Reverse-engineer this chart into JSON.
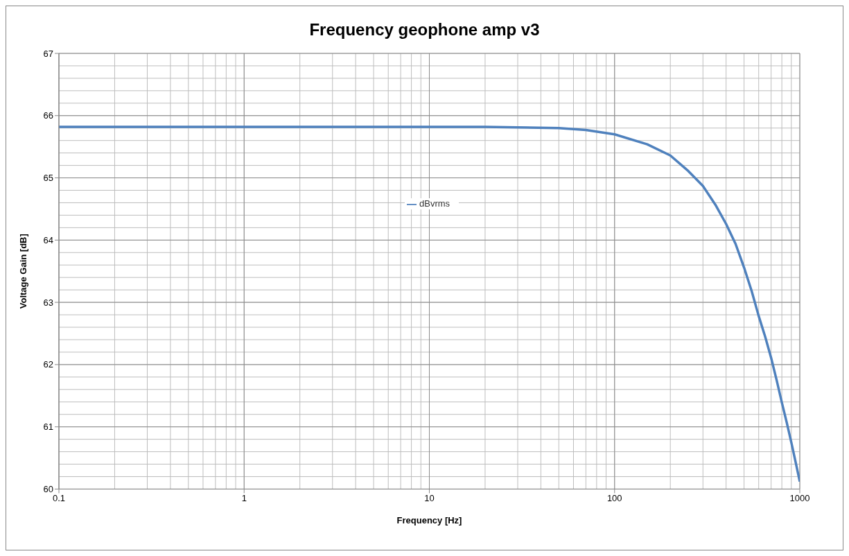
{
  "chart_data": {
    "type": "line",
    "title": "Frequency geophone amp v3",
    "xlabel": "Frequency [Hz]",
    "ylabel": "Voltage Gain [dB]",
    "x": [
      0.1,
      0.2,
      0.5,
      1,
      2,
      5,
      10,
      20,
      30,
      50,
      70,
      100,
      150,
      200,
      250,
      300,
      350,
      400,
      450,
      500,
      550,
      600,
      650,
      700,
      750,
      800,
      850,
      900,
      950,
      1000
    ],
    "series": [
      {
        "name": "dBvrms",
        "color": "#4f81bd",
        "values": [
          65.82,
          65.82,
          65.82,
          65.82,
          65.82,
          65.82,
          65.82,
          65.82,
          65.81,
          65.8,
          65.77,
          65.7,
          65.54,
          65.36,
          65.11,
          64.87,
          64.57,
          64.26,
          63.94,
          63.56,
          63.18,
          62.78,
          62.45,
          62.11,
          61.75,
          61.39,
          61.07,
          60.75,
          60.43,
          60.12
        ]
      }
    ],
    "log": "x",
    "xlim": [
      0.1,
      1000
    ],
    "xticks": [
      0.1,
      1,
      10,
      100,
      1000
    ],
    "ylim": [
      60,
      67
    ],
    "yticks": [
      60,
      61,
      62,
      63,
      64,
      65,
      66,
      67
    ],
    "grid": true,
    "legend": "center",
    "marker": "none",
    "line_style": "solid"
  }
}
